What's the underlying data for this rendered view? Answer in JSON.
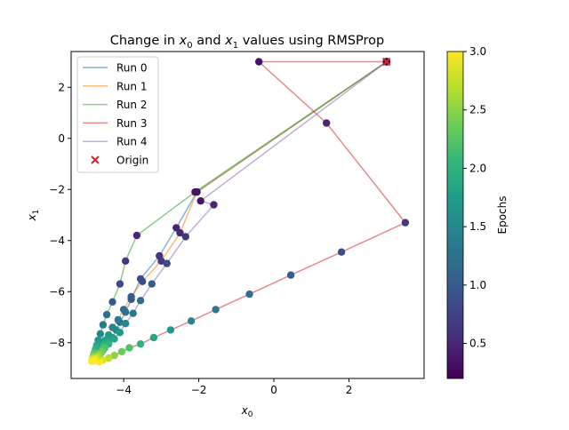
{
  "chart_data": {
    "type": "scatter",
    "title": "Change in x0 and x1 values using RMSProp",
    "title_parts": [
      "Change in ",
      "x",
      "0",
      " and ",
      "x",
      "1",
      " values using RMSProp"
    ],
    "xlabel": "x0",
    "xlabel_parts": {
      "main": "x",
      "sub": "0"
    },
    "ylabel": "x1",
    "ylabel_parts": {
      "main": "x",
      "sub": "1"
    },
    "xlim": [
      -5.4,
      4.0
    ],
    "ylim": [
      -9.4,
      3.4
    ],
    "xticks": [
      -4,
      -2,
      0,
      2
    ],
    "xtick_labels": [
      "−4",
      "−2",
      "0",
      "2"
    ],
    "yticks": [
      -8,
      -6,
      -4,
      -2,
      0,
      2
    ],
    "ytick_labels": [
      "−8",
      "−6",
      "−4",
      "−2",
      "0",
      "2"
    ],
    "grid": false,
    "legend_position": "top-left",
    "colorbar": {
      "label": "Epochs",
      "range": [
        0.2,
        3.0
      ],
      "ticks": [
        0.5,
        1.0,
        1.5,
        2.0,
        2.5,
        3.0
      ],
      "tick_labels": [
        "0.5",
        "1.0",
        "1.5",
        "2.0",
        "2.5",
        "3.0"
      ],
      "colormap": "viridis"
    },
    "origin": {
      "name": "Origin",
      "x": 3.0,
      "y": 3.0,
      "color": "#d62728"
    },
    "series": [
      {
        "name": "Run 0",
        "color": "#1f77b4",
        "x": [
          3.0,
          -2.05,
          -2.6,
          -3.05,
          -3.55,
          -3.8,
          -3.95,
          -4.1,
          -4.2,
          -4.3,
          -4.4,
          -4.5,
          -4.55,
          -4.6,
          -4.65,
          -4.7,
          -4.75,
          -4.8
        ],
        "y": [
          3.0,
          -2.1,
          -3.5,
          -4.6,
          -5.5,
          -6.3,
          -6.8,
          -7.2,
          -7.5,
          -7.8,
          -8.0,
          -8.15,
          -8.3,
          -8.4,
          -8.5,
          -8.6,
          -8.65,
          -8.7
        ]
      },
      {
        "name": "Run 1",
        "color": "#ff7f0e",
        "x": [
          3.0,
          -2.05,
          -2.5,
          -3.0,
          -3.5,
          -3.8,
          -4.0,
          -4.15,
          -4.3,
          -4.4,
          -4.5,
          -4.55,
          -4.6,
          -4.65,
          -4.7,
          -4.72,
          -4.75,
          -4.78
        ],
        "y": [
          3.0,
          -2.1,
          -3.7,
          -4.8,
          -5.6,
          -6.2,
          -6.7,
          -7.1,
          -7.4,
          -7.7,
          -7.9,
          -8.1,
          -8.25,
          -8.4,
          -8.5,
          -8.6,
          -8.65,
          -8.7
        ]
      },
      {
        "name": "Run 2",
        "color": "#2ca02c",
        "x": [
          3.0,
          -2.1,
          -3.65,
          -3.95,
          -4.1,
          -4.3,
          -4.45,
          -4.55,
          -4.62,
          -4.68,
          -4.72,
          -4.75,
          -4.78,
          -4.8,
          -4.82,
          -4.83,
          -4.84,
          -4.85
        ],
        "y": [
          3.0,
          -2.1,
          -3.8,
          -4.8,
          -5.7,
          -6.4,
          -6.9,
          -7.3,
          -7.65,
          -7.9,
          -8.1,
          -8.25,
          -8.38,
          -8.48,
          -8.56,
          -8.62,
          -8.67,
          -8.72
        ]
      },
      {
        "name": "Run 3",
        "color": "#d62728",
        "x": [
          3.0,
          -0.4,
          1.4,
          3.5,
          1.8,
          0.45,
          -0.65,
          -1.55,
          -2.2,
          -2.75,
          -3.2,
          -3.55,
          -3.85,
          -4.05,
          -4.25,
          -4.4,
          -4.55,
          -4.65
        ],
        "y": [
          3.0,
          3.0,
          0.6,
          -3.3,
          -4.45,
          -5.35,
          -6.1,
          -6.7,
          -7.15,
          -7.5,
          -7.8,
          -8.05,
          -8.2,
          -8.35,
          -8.5,
          -8.6,
          -8.68,
          -8.75
        ]
      },
      {
        "name": "Run 4",
        "color": "#9467bd",
        "x": [
          3.0,
          -1.95,
          -1.6,
          -2.35,
          -2.85,
          -3.25,
          -3.55,
          -3.75,
          -3.95,
          -4.1,
          -4.25,
          -4.4,
          -4.5,
          -4.58,
          -4.65,
          -4.7,
          -4.75,
          -4.78
        ],
        "y": [
          3.0,
          -2.45,
          -2.6,
          -3.85,
          -4.9,
          -5.7,
          -6.35,
          -6.85,
          -7.25,
          -7.6,
          -7.85,
          -8.05,
          -8.2,
          -8.35,
          -8.45,
          -8.55,
          -8.62,
          -8.68
        ]
      }
    ],
    "epoch_values": [
      0.2,
      0.35,
      0.5,
      0.65,
      0.85,
      1.0,
      1.2,
      1.35,
      1.5,
      1.7,
      1.85,
      2.0,
      2.2,
      2.35,
      2.5,
      2.7,
      2.85,
      3.0
    ]
  }
}
